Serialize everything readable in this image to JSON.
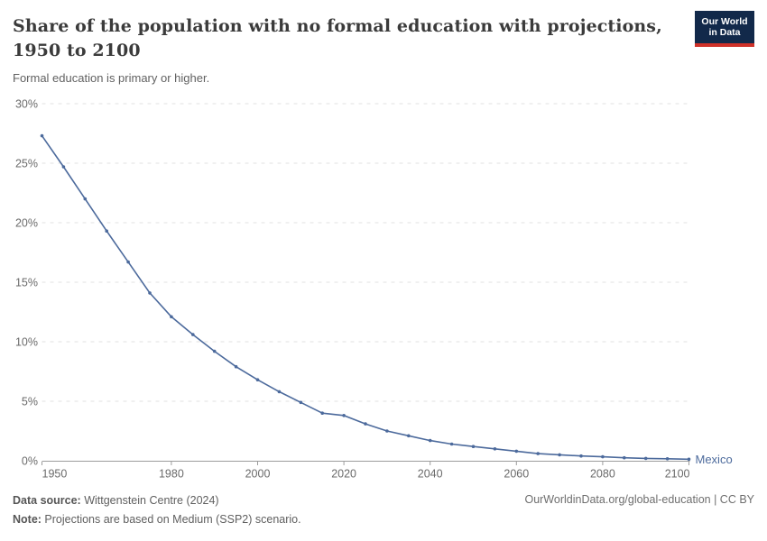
{
  "header": {
    "title": "Share of the population with no formal education with projections, 1950 to 2100",
    "title_line1": "Share of the population with no formal education with projections,",
    "title_line2": "1950 to 2100",
    "subtitle": "Formal education is primary or higher.",
    "logo": {
      "line1": "Our World",
      "line2": "in Data",
      "bg_color": "#12294a",
      "accent_color": "#cf3129"
    }
  },
  "chart_data": {
    "type": "line",
    "title": "Share of the population with no formal education with projections, 1950 to 2100",
    "subtitle": "Formal education is primary or higher.",
    "x": [
      1950,
      1955,
      1960,
      1965,
      1970,
      1975,
      1980,
      1985,
      1990,
      1995,
      2000,
      2005,
      2010,
      2015,
      2020,
      2025,
      2030,
      2035,
      2040,
      2045,
      2050,
      2055,
      2060,
      2065,
      2070,
      2075,
      2080,
      2085,
      2090,
      2095,
      2100
    ],
    "series": [
      {
        "name": "Mexico",
        "color": "#4C6A9C",
        "values": [
          27.3,
          24.7,
          22.0,
          19.3,
          16.7,
          14.1,
          12.1,
          10.6,
          9.2,
          7.9,
          6.8,
          5.8,
          4.9,
          4.0,
          3.8,
          3.1,
          2.5,
          2.1,
          1.7,
          1.4,
          1.2,
          1.0,
          0.8,
          0.6,
          0.5,
          0.4,
          0.33,
          0.25,
          0.2,
          0.17,
          0.13
        ]
      }
    ],
    "xlabel": "",
    "ylabel": "",
    "xlim": [
      1950,
      2100
    ],
    "ylim": [
      0,
      30
    ],
    "yticks": [
      0,
      5,
      10,
      15,
      20,
      25,
      30
    ],
    "ytick_suffix": "%",
    "xticks": [
      1950,
      1980,
      2000,
      2020,
      2040,
      2060,
      2080,
      2100
    ],
    "grid": "horizontal dashed",
    "legend": "end-of-line label",
    "marker": "dot"
  },
  "footer": {
    "source_label": "Data source:",
    "source_text": " Wittgenstein Centre (2024)",
    "note_label": "Note:",
    "note_text": " Projections are based on Medium (SSP2) scenario.",
    "attribution": "OurWorldinData.org/global-education | CC BY"
  },
  "colors": {
    "line": "#4C6A9C",
    "grid": "#e1e1e1",
    "axis": "#9c9c9c",
    "tick_label": "#6b6b6b"
  }
}
